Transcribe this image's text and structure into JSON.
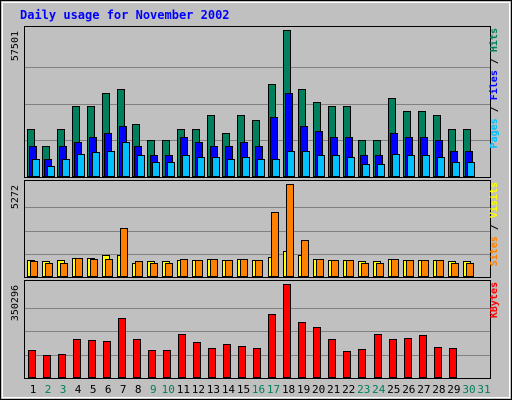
{
  "chart_data": {
    "type": "bar",
    "title": "Daily usage for November 2002",
    "categories": [
      "1",
      "2",
      "3",
      "4",
      "5",
      "6",
      "7",
      "8",
      "9",
      "10",
      "11",
      "12",
      "13",
      "14",
      "15",
      "16",
      "17",
      "18",
      "19",
      "20",
      "21",
      "22",
      "23",
      "24",
      "25",
      "26",
      "27",
      "28",
      "29",
      "30",
      "31"
    ],
    "weekend_days": [
      2,
      3,
      9,
      10,
      16,
      17,
      23,
      24,
      30,
      31
    ],
    "panels": [
      {
        "id": "hits-files-pages",
        "ymax_label": "57501",
        "ylim": [
          0,
          57501
        ],
        "side_labels": [
          {
            "text": "Pages",
            "color": "#00c0ff"
          },
          {
            "text": " / ",
            "color": "#000000"
          },
          {
            "text": "Files",
            "color": "#0000ff"
          },
          {
            "text": " / ",
            "color": "#000000"
          },
          {
            "text": "Hits",
            "color": "#00805c"
          }
        ],
        "series": [
          {
            "name": "Hits",
            "color": "#00805c",
            "values": [
              18969,
              12071,
              18969,
              27594,
              27594,
              32765,
              34490,
              20694,
              14659,
              14659,
              18969,
              18969,
              24145,
              17246,
              24145,
              22420,
              36216,
              57501,
              34490,
              29320,
              27594,
              27594,
              14659,
              14659,
              31040,
              25871,
              25871,
              24145,
              18969,
              18969,
              null
            ]
          },
          {
            "name": "Files",
            "color": "#0000ff",
            "values": [
              12071,
              6900,
              12071,
              13796,
              15521,
              17246,
              19831,
              12071,
              8625,
              8625,
              15521,
              13796,
              12071,
              12071,
              13796,
              12071,
              23282,
              32765,
              19831,
              18106,
              15521,
              15521,
              8625,
              8625,
              17246,
              15521,
              15521,
              14659,
              10346,
              10346,
              null
            ]
          },
          {
            "name": "Pages",
            "color": "#00c0ff",
            "values": [
              6900,
              4140,
              6900,
              9050,
              9914,
              10346,
              13796,
              8625,
              6036,
              6036,
              8625,
              7761,
              7761,
              6900,
              7761,
              6900,
              6900,
              10346,
              10346,
              8625,
              8625,
              7761,
              5176,
              5176,
              9050,
              8625,
              8625,
              7761,
              6036,
              6036,
              null
            ]
          }
        ]
      },
      {
        "id": "visits-sites",
        "ymax_label": "5272",
        "ylim": [
          0,
          5272
        ],
        "side_labels": [
          {
            "text": "Sites",
            "color": "#ff8000"
          },
          {
            "text": " / ",
            "color": "#000000"
          },
          {
            "text": "Visits",
            "color": "#ffff00"
          }
        ],
        "series": [
          {
            "name": "Visits",
            "color": "#ffff00",
            "values": [
              950,
              880,
              950,
              1080,
              1080,
              1220,
              1220,
              810,
              880,
              880,
              950,
              950,
              1020,
              950,
              1020,
              950,
              1160,
              1500,
              1220,
              1020,
              950,
              950,
              880,
              880,
              1020,
              950,
              950,
              950,
              880,
              880,
              null
            ]
          },
          {
            "name": "Sites",
            "color": "#ff8000",
            "values": [
              880,
              810,
              810,
              1080,
              1020,
              1020,
              2780,
              880,
              810,
              810,
              1020,
              950,
              1020,
              950,
              1020,
              950,
              3690,
              5272,
              2100,
              1020,
              950,
              950,
              810,
              810,
              1020,
              950,
              950,
              950,
              810,
              810,
              null
            ]
          }
        ]
      },
      {
        "id": "kbytes",
        "ymax_label": "350296",
        "ylim": [
          0,
          350296
        ],
        "side_labels": [
          {
            "text": "KBytes",
            "color": "#ff0000"
          }
        ],
        "series": [
          {
            "name": "KBytes",
            "color": "#ff0000",
            "values": [
              104130,
              85200,
              90880,
              146720,
              142930,
              136300,
              225300,
              146720,
              104130,
              104130,
              165650,
              133500,
              110760,
              125900,
              117400,
              110760,
              237600,
              350296,
              208250,
              189330,
              145770,
              100340,
              107920,
              162800,
              146720,
              149560,
              160950,
              115490,
              113600,
              null,
              null
            ]
          }
        ]
      }
    ]
  }
}
